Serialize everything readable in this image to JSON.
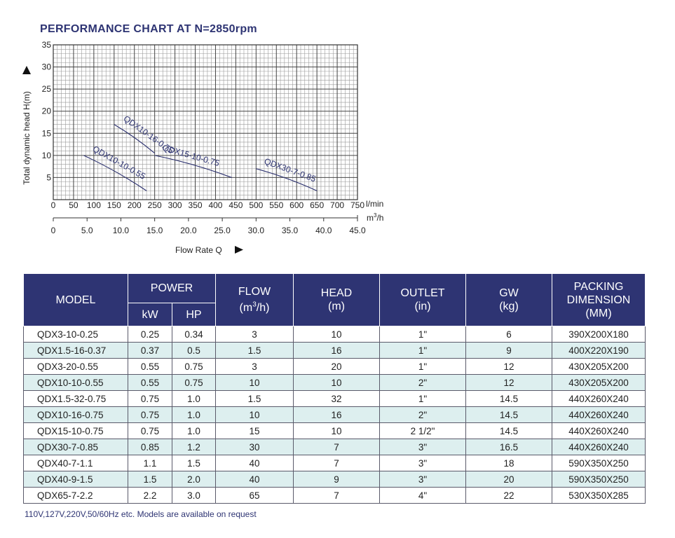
{
  "chart_data": {
    "type": "line",
    "title": "PERFORMANCE CHART AT N=2850rpm",
    "ylabel": "Total dynamic head H(m)",
    "xlabel": "Flow Rate Q",
    "ylim": [
      0,
      35
    ],
    "xlim": [
      0,
      750
    ],
    "grid": true,
    "y_ticks": [
      "5",
      "10",
      "15",
      "20",
      "25",
      "30",
      "35"
    ],
    "x_ticks_lmin": [
      "0",
      "50",
      "100",
      "150",
      "200",
      "250",
      "300",
      "350",
      "400",
      "450",
      "500",
      "550",
      "600",
      "650",
      "700",
      "750"
    ],
    "x_unit_lmin": "l/min",
    "x_ticks_m3h": [
      "0",
      "5.0",
      "10.0",
      "15.0",
      "20.0",
      "25.0",
      "30.0",
      "35.0",
      "40.0",
      "45.0"
    ],
    "x_unit_m3h_base": "m",
    "x_unit_m3h_sup": "3",
    "x_unit_m3h_tail": "/h",
    "series": [
      {
        "name": "QDX10-16-0.75",
        "x": [
          150,
          250
        ],
        "y": [
          17,
          10.5
        ]
      },
      {
        "name": "QDX10-10-0.55",
        "x": [
          75,
          230
        ],
        "y": [
          10,
          2
        ]
      },
      {
        "name": "QDX15-10-0.75",
        "x": [
          250,
          440
        ],
        "y": [
          10,
          5
        ]
      },
      {
        "name": "QDX30-7-0.85",
        "x": [
          500,
          650
        ],
        "y": [
          7,
          2
        ]
      }
    ]
  },
  "table": {
    "headers": {
      "model": "MODEL",
      "power": "POWER",
      "kw": "kW",
      "hp": "HP",
      "flow_line1": "FLOW",
      "flow_line2_pre": "(m",
      "flow_line2_sup": "3",
      "flow_line2_post": "/h)",
      "head_line1": "HEAD",
      "head_line2": "(m)",
      "outlet_line1": "OUTLET",
      "outlet_line2": "(in)",
      "gw_line1": "GW",
      "gw_line2": "(kg)",
      "packing_line1": "PACKING",
      "packing_line2": "DIMENSION",
      "packing_line3": "(MM)"
    },
    "rows": [
      [
        "QDX3-10-0.25",
        "0.25",
        "0.34",
        "3",
        "10",
        "1\"",
        "6",
        "390X200X180"
      ],
      [
        "QDX1.5-16-0.37",
        "0.37",
        "0.5",
        "1.5",
        "16",
        "1\"",
        "9",
        "400X220X190"
      ],
      [
        "QDX3-20-0.55",
        "0.55",
        "0.75",
        "3",
        "20",
        "1\"",
        "12",
        "430X205X200"
      ],
      [
        "QDX10-10-0.55",
        "0.55",
        "0.75",
        "10",
        "10",
        "2\"",
        "12",
        "430X205X200"
      ],
      [
        "QDX1.5-32-0.75",
        "0.75",
        "1.0",
        "1.5",
        "32",
        "1\"",
        "14.5",
        "440X260X240"
      ],
      [
        "QDX10-16-0.75",
        "0.75",
        "1.0",
        "10",
        "16",
        "2\"",
        "14.5",
        "440X260X240"
      ],
      [
        "QDX15-10-0.75",
        "0.75",
        "1.0",
        "15",
        "10",
        "2 1/2\"",
        "14.5",
        "440X260X240"
      ],
      [
        "QDX30-7-0.85",
        "0.85",
        "1.2",
        "30",
        "7",
        "3\"",
        "16.5",
        "440X260X240"
      ],
      [
        "QDX40-7-1.1",
        "1.1",
        "1.5",
        "40",
        "7",
        "3\"",
        "18",
        "590X350X250"
      ],
      [
        "QDX40-9-1.5",
        "1.5",
        "2.0",
        "40",
        "9",
        "3\"",
        "20",
        "590X350X250"
      ],
      [
        "QDX65-7-2.2",
        "2.2",
        "3.0",
        "65",
        "7",
        "4\"",
        "22",
        "530X350X285"
      ]
    ]
  },
  "footnote": "110V,127V,220V,50/60Hz etc. Models are available on request",
  "colors": {
    "accent": "#2e3473",
    "row_alt": "#ddefef",
    "grid": "#555555"
  }
}
